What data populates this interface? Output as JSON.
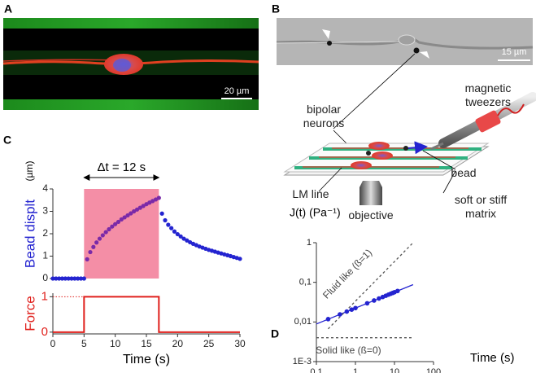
{
  "panels": {
    "A": {
      "label": "A",
      "scale_bar": "20 µm"
    },
    "B": {
      "label": "B",
      "scale_bar": "15 µm",
      "labels": [
        "magnetic tweezers",
        "bipolar neurons",
        "bead",
        "LM line",
        "objective",
        "soft or stiff matrix"
      ]
    },
    "C": {
      "label": "C"
    },
    "D": {
      "label": "D"
    }
  },
  "chart_data": [
    {
      "type": "scatter",
      "y_unit": "(µm)",
      "ylabel": "Bead displt",
      "xlim": [
        0,
        30
      ],
      "ylim": [
        0,
        4
      ],
      "yticks": [
        0,
        1,
        2,
        3,
        4
      ],
      "color": "#2424d0",
      "highlight": {
        "xlim": [
          5,
          17
        ],
        "color": "#f48ea6",
        "point_color": "#7a2aa8"
      },
      "annotation": "Δt = 12 s",
      "x": [
        0,
        0.5,
        1,
        1.5,
        2,
        2.5,
        3,
        3.5,
        4,
        4.5,
        5,
        5.5,
        6,
        6.5,
        7,
        7.5,
        8,
        8.5,
        9,
        9.5,
        10,
        10.5,
        11,
        11.5,
        12,
        12.5,
        13,
        13.5,
        14,
        14.5,
        15,
        15.5,
        16,
        16.5,
        17,
        17.5,
        18,
        18.5,
        19,
        19.5,
        20,
        20.5,
        21,
        21.5,
        22,
        22.5,
        23,
        23.5,
        24,
        24.5,
        25,
        25.5,
        26,
        26.5,
        27,
        27.5,
        28,
        28.5,
        29,
        29.5,
        30
      ],
      "values": [
        0,
        0,
        0,
        0,
        0,
        0,
        0,
        0,
        0,
        0,
        0,
        0.86,
        1.18,
        1.41,
        1.61,
        1.78,
        1.93,
        2.07,
        2.2,
        2.32,
        2.43,
        2.53,
        2.64,
        2.73,
        2.82,
        2.91,
        3.0,
        3.08,
        3.16,
        3.24,
        3.32,
        3.39,
        3.46,
        3.53,
        3.6,
        2.9,
        2.6,
        2.4,
        2.25,
        2.1,
        1.98,
        1.88,
        1.78,
        1.7,
        1.62,
        1.55,
        1.49,
        1.43,
        1.38,
        1.33,
        1.28,
        1.24,
        1.2,
        1.16,
        1.12,
        1.08,
        1.04,
        1.0,
        0.96,
        0.92,
        0.88
      ]
    },
    {
      "type": "line",
      "ylabel": "Force",
      "xlabel": "Time (s)",
      "color": "#e0201c",
      "xlim": [
        0,
        30
      ],
      "xticks": [
        0,
        5,
        10,
        15,
        20,
        25,
        30
      ],
      "ylim": [
        -0.05,
        1.1
      ],
      "yticks": [
        0,
        1
      ],
      "x": [
        0,
        5,
        5,
        17,
        17,
        30
      ],
      "values": [
        0,
        0,
        1,
        1,
        0,
        0
      ]
    },
    {
      "type": "scatter",
      "xlabel": "Time (s)",
      "ylabel": "J(t) (Pa⁻¹)",
      "xlog": true,
      "ylog": true,
      "xlim": [
        0.1,
        100
      ],
      "ylim": [
        0.001,
        1
      ],
      "xticks": [
        {
          "value": 0.1,
          "label": "0,1"
        },
        1,
        10,
        100
      ],
      "yticks": [
        {
          "value": 0.001,
          "label": "1E-3"
        },
        {
          "value": 0.01,
          "label": "0,01"
        },
        {
          "value": 0.1,
          "label": "0,1"
        },
        1
      ],
      "color": "#2424d0",
      "x": [
        0.2,
        0.4,
        0.6,
        0.8,
        1,
        2,
        3,
        4,
        5,
        6,
        7,
        8,
        9,
        10,
        12
      ],
      "values": [
        0.0118,
        0.0155,
        0.0183,
        0.0205,
        0.0224,
        0.0296,
        0.0348,
        0.039,
        0.0426,
        0.0459,
        0.0488,
        0.0515,
        0.0539,
        0.0563,
        0.0605
      ],
      "lines": [
        {
          "x": [
            0.1,
            30
          ],
          "values": [
            0.0089,
            0.0873
          ],
          "color": "#2424d0",
          "dash": false
        },
        {
          "name": "Fluid like (ß=1)",
          "x": [
            0.2,
            30
          ],
          "values": [
            0.0067,
            1
          ],
          "color": "#555555",
          "dash": true
        },
        {
          "name": "Solid like (ß=0)",
          "x": [
            0.1,
            30
          ],
          "values": [
            0.004,
            0.004
          ],
          "color": "#555555",
          "dash": true
        }
      ]
    }
  ]
}
